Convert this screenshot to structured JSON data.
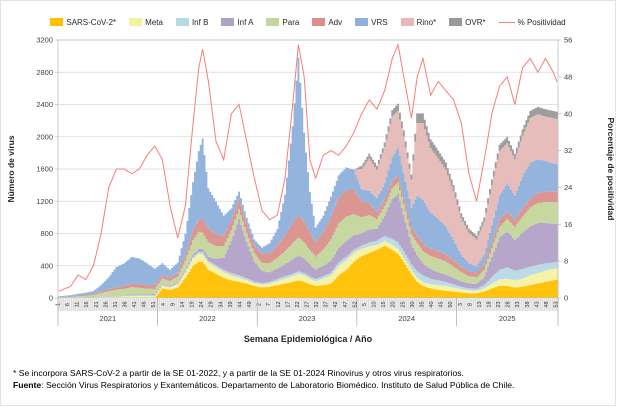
{
  "legend_title": "legend",
  "axes": {
    "left": {
      "title": "Número de virus",
      "ticks": [
        0,
        400,
        800,
        1200,
        1600,
        2000,
        2400,
        2800,
        3200
      ],
      "max": 3200
    },
    "right": {
      "title": "Porcentaje de positividad",
      "ticks": [
        0,
        8,
        16,
        24,
        32,
        40,
        48,
        56
      ],
      "max": 56
    },
    "x": {
      "title": "Semana Epidemiológica / Año",
      "years": [
        {
          "label": "2021",
          "start": 0,
          "end": 52
        },
        {
          "label": "2022",
          "start": 52,
          "end": 104
        },
        {
          "label": "2023",
          "start": 104,
          "end": 156
        },
        {
          "label": "2024",
          "start": 156,
          "end": 208
        },
        {
          "label": "2025",
          "start": 208,
          "end": 261
        }
      ],
      "week_ticks": [
        [
          0,
          "1"
        ],
        [
          5,
          "6"
        ],
        [
          10,
          "11"
        ],
        [
          15,
          "16"
        ],
        [
          20,
          "21"
        ],
        [
          25,
          "26"
        ],
        [
          30,
          "31"
        ],
        [
          35,
          "36"
        ],
        [
          40,
          "41"
        ],
        [
          45,
          "46"
        ],
        [
          50,
          "51"
        ],
        [
          55,
          "4"
        ],
        [
          60,
          "9"
        ],
        [
          65,
          "14"
        ],
        [
          70,
          "19"
        ],
        [
          75,
          "24"
        ],
        [
          80,
          "29"
        ],
        [
          85,
          "34"
        ],
        [
          90,
          "39"
        ],
        [
          95,
          "44"
        ],
        [
          100,
          "49"
        ],
        [
          105,
          "2"
        ],
        [
          110,
          "7"
        ],
        [
          115,
          "12"
        ],
        [
          120,
          "17"
        ],
        [
          125,
          "22"
        ],
        [
          130,
          "27"
        ],
        [
          135,
          "32"
        ],
        [
          140,
          "37"
        ],
        [
          145,
          "42"
        ],
        [
          150,
          "47"
        ],
        [
          155,
          "52"
        ],
        [
          160,
          "5"
        ],
        [
          165,
          "10"
        ],
        [
          170,
          "15"
        ],
        [
          175,
          "20"
        ],
        [
          180,
          "25"
        ],
        [
          185,
          "30"
        ],
        [
          190,
          "35"
        ],
        [
          195,
          "40"
        ],
        [
          200,
          "45"
        ],
        [
          205,
          "50"
        ],
        [
          210,
          "3"
        ],
        [
          215,
          "8"
        ],
        [
          220,
          "13"
        ],
        [
          225,
          "18"
        ],
        [
          230,
          "23"
        ],
        [
          235,
          "28"
        ],
        [
          240,
          "33"
        ],
        [
          245,
          "38"
        ],
        [
          250,
          "43"
        ],
        [
          255,
          "48"
        ],
        [
          260,
          "53"
        ]
      ]
    }
  },
  "chart_data": {
    "type": "area",
    "subtype": "stacked weekly virus counts with positivity line on secondary axis",
    "x_unit": "epidemiological week index (0 = week 1 of 2021, through week 53 slot of 2025)",
    "n_weeks": 261,
    "ylim_left": [
      0,
      3200
    ],
    "ylim_right": [
      0,
      56
    ],
    "grid": "horizontal",
    "legend_position": "top",
    "x": [
      0,
      6,
      10,
      14,
      18,
      22,
      26,
      30,
      34,
      38,
      42,
      46,
      50,
      54,
      58,
      62,
      66,
      70,
      73,
      75,
      78,
      82,
      86,
      90,
      94,
      98,
      102,
      106,
      110,
      114,
      118,
      122,
      125,
      128,
      131,
      134,
      138,
      142,
      146,
      150,
      154,
      158,
      162,
      166,
      170,
      174,
      177,
      180,
      184,
      187,
      190,
      194,
      198,
      202,
      206,
      210,
      214,
      218,
      222,
      226,
      230,
      234,
      238,
      242,
      246,
      250,
      254,
      258,
      260
    ],
    "series": [
      {
        "id": "sars",
        "label": "SARS-CoV-2*",
        "color": "#FFC000",
        "values": [
          0,
          0,
          0,
          0,
          0,
          0,
          0,
          0,
          0,
          0,
          0,
          0,
          0,
          120,
          100,
          130,
          250,
          400,
          450,
          450,
          350,
          300,
          250,
          220,
          200,
          180,
          150,
          130,
          140,
          160,
          180,
          200,
          220,
          200,
          170,
          150,
          160,
          180,
          280,
          350,
          450,
          520,
          560,
          600,
          650,
          600,
          550,
          450,
          300,
          200,
          150,
          120,
          100,
          90,
          80,
          70,
          60,
          60,
          80,
          120,
          150,
          150,
          130,
          140,
          160,
          180,
          200,
          220,
          230
        ]
      },
      {
        "id": "meta",
        "label": "Meta",
        "color": "#F5F1A3",
        "values": [
          0,
          3,
          5,
          5,
          8,
          10,
          12,
          15,
          20,
          25,
          25,
          25,
          25,
          30,
          30,
          40,
          60,
          90,
          100,
          100,
          90,
          80,
          70,
          60,
          50,
          40,
          35,
          35,
          40,
          50,
          60,
          70,
          80,
          80,
          70,
          60,
          80,
          100,
          120,
          120,
          110,
          90,
          80,
          60,
          60,
          60,
          60,
          50,
          50,
          50,
          50,
          50,
          60,
          60,
          50,
          40,
          35,
          30,
          40,
          60,
          80,
          90,
          90,
          100,
          120,
          130,
          140,
          140,
          140
        ]
      },
      {
        "id": "infb",
        "label": "Inf B",
        "color": "#B7D9E6",
        "values": [
          0,
          0,
          0,
          0,
          0,
          5,
          5,
          5,
          8,
          10,
          10,
          10,
          12,
          10,
          10,
          12,
          15,
          18,
          20,
          20,
          20,
          25,
          30,
          30,
          30,
          25,
          20,
          20,
          20,
          25,
          30,
          30,
          30,
          30,
          25,
          25,
          30,
          35,
          40,
          40,
          40,
          40,
          50,
          50,
          60,
          70,
          80,
          80,
          70,
          80,
          80,
          70,
          60,
          50,
          40,
          30,
          25,
          25,
          40,
          80,
          120,
          140,
          120,
          120,
          110,
          100,
          90,
          80,
          80
        ]
      },
      {
        "id": "infa",
        "label": "Inf A",
        "color": "#B2A1C7",
        "values": [
          0,
          0,
          2,
          2,
          3,
          5,
          5,
          5,
          5,
          10,
          10,
          10,
          15,
          10,
          10,
          15,
          20,
          30,
          40,
          40,
          50,
          80,
          150,
          400,
          700,
          450,
          250,
          150,
          120,
          130,
          150,
          180,
          200,
          180,
          150,
          120,
          130,
          150,
          180,
          200,
          180,
          150,
          160,
          150,
          250,
          500,
          600,
          450,
          250,
          200,
          150,
          120,
          100,
          90,
          80,
          70,
          60,
          60,
          100,
          250,
          400,
          450,
          380,
          450,
          500,
          520,
          500,
          480,
          470
        ]
      },
      {
        "id": "para",
        "label": "Para",
        "color": "#C3D69B",
        "values": [
          5,
          8,
          15,
          20,
          25,
          40,
          60,
          80,
          80,
          90,
          80,
          70,
          60,
          70,
          60,
          70,
          120,
          180,
          210,
          200,
          180,
          160,
          140,
          130,
          120,
          110,
          100,
          100,
          110,
          130,
          160,
          200,
          220,
          200,
          180,
          160,
          200,
          260,
          300,
          300,
          260,
          200,
          180,
          120,
          120,
          130,
          140,
          130,
          120,
          150,
          150,
          160,
          170,
          160,
          140,
          110,
          90,
          80,
          90,
          110,
          130,
          150,
          160,
          200,
          230,
          250,
          260,
          270,
          270
        ]
      },
      {
        "id": "adv",
        "label": "Adv",
        "color": "#D9908C",
        "values": [
          5,
          8,
          10,
          12,
          15,
          20,
          25,
          30,
          35,
          45,
          45,
          45,
          50,
          40,
          40,
          50,
          80,
          120,
          150,
          170,
          170,
          150,
          130,
          120,
          120,
          110,
          100,
          110,
          130,
          160,
          200,
          250,
          280,
          260,
          220,
          180,
          220,
          280,
          320,
          330,
          300,
          200,
          150,
          80,
          80,
          90,
          90,
          90,
          80,
          90,
          90,
          90,
          90,
          90,
          80,
          70,
          60,
          60,
          70,
          80,
          90,
          90,
          90,
          100,
          110,
          120,
          130,
          130,
          130
        ]
      },
      {
        "id": "vrs",
        "label": "VRS",
        "color": "#8EB0DB",
        "values": [
          10,
          15,
          20,
          25,
          35,
          80,
          150,
          250,
          280,
          330,
          320,
          270,
          200,
          150,
          100,
          120,
          250,
          600,
          850,
          1000,
          500,
          400,
          250,
          150,
          100,
          80,
          70,
          80,
          120,
          200,
          500,
          1200,
          1950,
          1100,
          500,
          180,
          200,
          250,
          280,
          280,
          250,
          150,
          150,
          180,
          200,
          300,
          350,
          300,
          250,
          500,
          550,
          450,
          400,
          350,
          250,
          150,
          100,
          80,
          120,
          200,
          300,
          350,
          300,
          400,
          450,
          420,
          380,
          350,
          340
        ]
      },
      {
        "id": "rino",
        "label": "Rino*",
        "color": "#E6B9B8",
        "values": [
          0,
          0,
          0,
          0,
          0,
          0,
          0,
          0,
          0,
          0,
          0,
          0,
          0,
          0,
          0,
          0,
          0,
          0,
          0,
          0,
          0,
          0,
          0,
          0,
          0,
          0,
          0,
          0,
          0,
          0,
          0,
          0,
          0,
          0,
          0,
          0,
          0,
          0,
          0,
          0,
          0,
          250,
          400,
          350,
          450,
          500,
          450,
          450,
          350,
          900,
          950,
          800,
          750,
          700,
          600,
          450,
          380,
          330,
          400,
          500,
          550,
          500,
          450,
          500,
          550,
          560,
          550,
          560,
          560
        ]
      },
      {
        "id": "ovr",
        "label": "OVR*",
        "color": "#999999",
        "values": [
          0,
          0,
          0,
          0,
          0,
          0,
          0,
          0,
          0,
          0,
          0,
          0,
          0,
          0,
          0,
          0,
          0,
          0,
          0,
          0,
          0,
          0,
          0,
          0,
          0,
          0,
          0,
          0,
          0,
          0,
          0,
          0,
          0,
          0,
          0,
          0,
          0,
          0,
          0,
          0,
          0,
          40,
          60,
          50,
          60,
          80,
          90,
          80,
          60,
          120,
          120,
          110,
          100,
          90,
          80,
          60,
          50,
          50,
          60,
          70,
          80,
          80,
          70,
          80,
          90,
          90,
          90,
          90,
          90
        ]
      }
    ],
    "positivity": {
      "id": "pos",
      "label": "% Positividad",
      "color": "#F57E78",
      "values": [
        1.5,
        2.5,
        5,
        4,
        7,
        14,
        24,
        28,
        28,
        27,
        28,
        31,
        33,
        30,
        20,
        13,
        20,
        38,
        50,
        54,
        47,
        34,
        30,
        40,
        42,
        34,
        26,
        19,
        17,
        18,
        26,
        42,
        55,
        48,
        30,
        26,
        31,
        32,
        31,
        33,
        36,
        40,
        43,
        41,
        45,
        52,
        55,
        48,
        39,
        48,
        52,
        44,
        47,
        45,
        43,
        38,
        27,
        21,
        30,
        40,
        46,
        48,
        42,
        50,
        52,
        49,
        52,
        49,
        47
      ]
    }
  },
  "footer": {
    "note": "* Se incorpora SARS-CoV-2 a partir de la SE 01-2022, y a partir de la SE 01-2024 Rinovirus y otros virus respiratorios.",
    "fuente_label": "Fuente",
    "fuente_rest": ": Sección Virus Respiratorios y Exantemáticos. Departamento de Laboratorio Biomédico. Instituto de Salud Pública de Chile."
  },
  "style": {
    "grid_color": "#D9D9D9",
    "axis_color": "#BFBFBF",
    "tick_text_color": "#404040",
    "ruler_bg": "#EDEDED",
    "ruler_line": "#C4C4C4"
  }
}
